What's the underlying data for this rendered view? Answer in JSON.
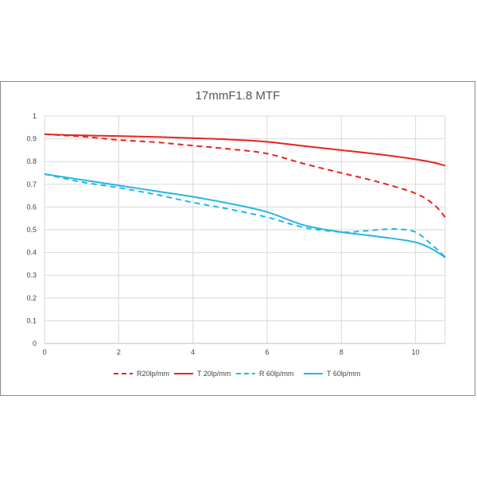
{
  "chart_data": {
    "type": "line",
    "title": "17mmF1.8  MTF",
    "xlabel": "",
    "ylabel": "",
    "xlim": [
      0,
      10.8
    ],
    "ylim": [
      0,
      1
    ],
    "x_ticks": [
      "0",
      "2",
      "4",
      "6",
      "8",
      "10"
    ],
    "y_ticks": [
      "0",
      "0.1",
      "0.2",
      "0.3",
      "0.4",
      "0.5",
      "0.6",
      "0.7",
      "0.8",
      "0.9",
      "1"
    ],
    "grid": true,
    "legend_position": "bottom",
    "series": [
      {
        "name": "R20lp/mm",
        "color": "#e8231f",
        "style": "dashed",
        "x": [
          0,
          1,
          2,
          3,
          4,
          5,
          6,
          7,
          8,
          9,
          10,
          10.5,
          10.8
        ],
        "y": [
          0.92,
          0.91,
          0.895,
          0.885,
          0.87,
          0.855,
          0.835,
          0.79,
          0.75,
          0.71,
          0.66,
          0.61,
          0.555
        ]
      },
      {
        "name": "T 20lp/mm",
        "color": "#e8231f",
        "style": "solid",
        "x": [
          0,
          1,
          2,
          3,
          4,
          5,
          6,
          7,
          8,
          9,
          10,
          10.5,
          10.8
        ],
        "y": [
          0.92,
          0.915,
          0.912,
          0.908,
          0.903,
          0.897,
          0.887,
          0.868,
          0.85,
          0.832,
          0.81,
          0.795,
          0.782
        ]
      },
      {
        "name": "R 60lp/mm",
        "color": "#25b6e6",
        "style": "dashed",
        "x": [
          0,
          1,
          2,
          3,
          4,
          5,
          6,
          7,
          8,
          8.5,
          9,
          9.5,
          10,
          10.4,
          10.8
        ],
        "y": [
          0.745,
          0.71,
          0.685,
          0.655,
          0.62,
          0.59,
          0.555,
          0.51,
          0.49,
          0.493,
          0.5,
          0.503,
          0.49,
          0.44,
          0.38
        ]
      },
      {
        "name": "T 60lp/mm",
        "color": "#25b6e6",
        "style": "solid",
        "x": [
          0,
          1,
          2,
          3,
          4,
          5,
          6,
          7,
          8,
          9,
          10,
          10.5,
          10.8
        ],
        "y": [
          0.745,
          0.72,
          0.695,
          0.67,
          0.645,
          0.615,
          0.578,
          0.52,
          0.49,
          0.47,
          0.445,
          0.41,
          0.378
        ]
      }
    ]
  }
}
